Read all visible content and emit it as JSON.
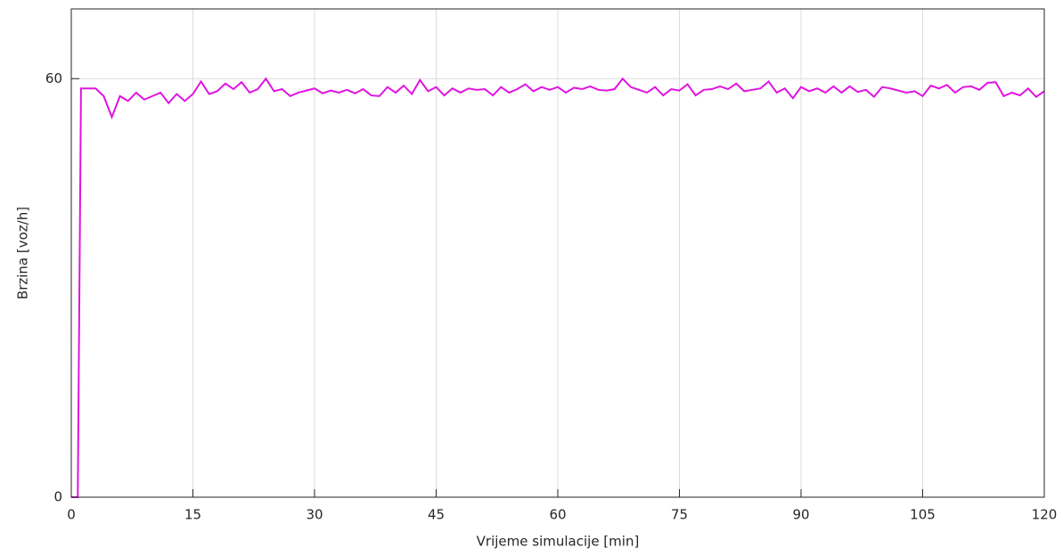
{
  "chart_data": {
    "type": "line",
    "x_label": "Vrijeme simulacije [min]",
    "y_label": "Brzina [voz/h]",
    "color": "#e014e0",
    "x": [
      0,
      0.8,
      1.2,
      2,
      3,
      4,
      5,
      6,
      7,
      8,
      9,
      10,
      11,
      12,
      13,
      14,
      15,
      16,
      17,
      18,
      19,
      20,
      21,
      22,
      23,
      24,
      25,
      26,
      27,
      28,
      29,
      30,
      31,
      32,
      33,
      34,
      35,
      36,
      37,
      38,
      39,
      40,
      41,
      42,
      43,
      44,
      45,
      46,
      47,
      48,
      49,
      50,
      51,
      52,
      53,
      54,
      55,
      56,
      57,
      58,
      59,
      60,
      61,
      62,
      63,
      64,
      65,
      66,
      67,
      68,
      69,
      70,
      71,
      72,
      73,
      74,
      75,
      76,
      77,
      78,
      79,
      80,
      81,
      82,
      83,
      84,
      85,
      86,
      87,
      88,
      89,
      90,
      91,
      92,
      93,
      94,
      95,
      96,
      97,
      98,
      99,
      100,
      101,
      102,
      103,
      104,
      105,
      106,
      107,
      108,
      109,
      110,
      111,
      112,
      113,
      114,
      115,
      116,
      117,
      118,
      119,
      120
    ],
    "values": [
      0,
      0,
      58.6,
      58.6,
      58.6,
      57.5,
      54.5,
      57.5,
      56.8,
      58.0,
      57.0,
      57.5,
      58.0,
      56.5,
      57.8,
      56.8,
      57.8,
      59.6,
      57.8,
      58.2,
      59.3,
      58.5,
      59.5,
      58.0,
      58.5,
      60.0,
      58.2,
      58.5,
      57.5,
      58.0,
      58.3,
      58.6,
      57.9,
      58.3,
      58.0,
      58.4,
      57.9,
      58.5,
      57.6,
      57.5,
      58.8,
      58.0,
      59.0,
      57.8,
      59.8,
      58.2,
      58.8,
      57.6,
      58.6,
      58.0,
      58.6,
      58.4,
      58.5,
      57.6,
      58.8,
      58.0,
      58.5,
      59.2,
      58.2,
      58.8,
      58.4,
      58.8,
      58.0,
      58.7,
      58.5,
      58.9,
      58.4,
      58.3,
      58.5,
      60.0,
      58.8,
      58.4,
      58.0,
      58.8,
      57.6,
      58.5,
      58.3,
      59.2,
      57.6,
      58.4,
      58.5,
      58.9,
      58.5,
      59.3,
      58.2,
      58.4,
      58.6,
      59.6,
      58.0,
      58.6,
      57.2,
      58.8,
      58.2,
      58.6,
      58.0,
      58.9,
      58.0,
      58.9,
      58.1,
      58.4,
      57.4,
      58.8,
      58.6,
      58.3,
      58.0,
      58.2,
      57.5,
      59.0,
      58.6,
      59.1,
      58.0,
      58.8,
      58.9,
      58.4,
      59.4,
      59.5,
      57.5,
      58.0,
      57.6,
      58.6,
      57.4,
      58.2
    ],
    "xlim": [
      0,
      120
    ],
    "xticks": [
      0,
      15,
      30,
      45,
      60,
      75,
      90,
      105,
      120
    ],
    "ylim": [
      0,
      70
    ],
    "yticks": [
      0,
      60
    ],
    "grid": true
  }
}
